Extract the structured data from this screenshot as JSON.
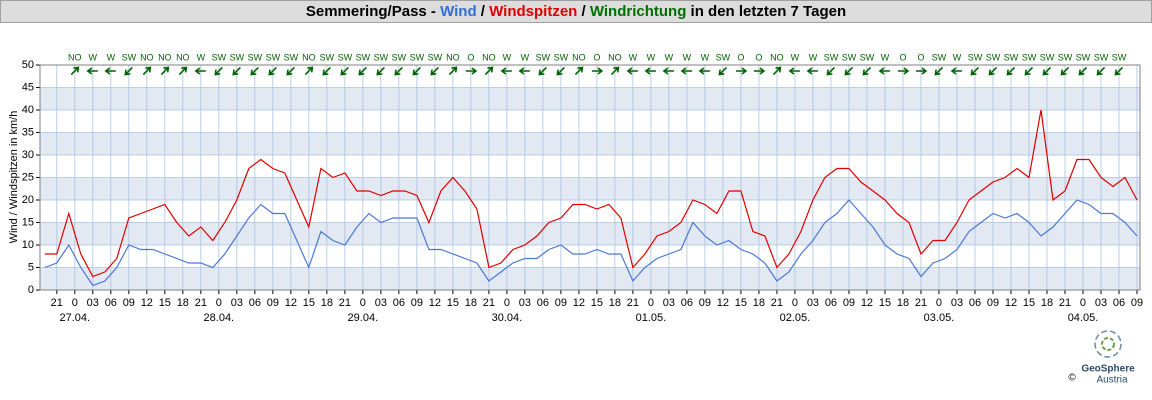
{
  "chart_data": {
    "type": "line",
    "title_parts": [
      {
        "text": "Semmering/Pass - ",
        "color": "#000000"
      },
      {
        "text": "Wind",
        "color": "#2f6fd6"
      },
      {
        "text": " / ",
        "color": "#000000"
      },
      {
        "text": "Windspitzen",
        "color": "#e00000"
      },
      {
        "text": " / ",
        "color": "#000000"
      },
      {
        "text": "Windrichtung",
        "color": "#007000"
      },
      {
        "text": " in den letzten 7 Tagen",
        "color": "#000000"
      }
    ],
    "y_label": "Wind / Windspitzen in km/h",
    "x": [
      -5,
      -3,
      -1,
      1,
      3,
      5,
      7,
      9,
      11,
      13,
      15,
      17,
      19,
      21,
      23,
      25,
      27,
      29,
      31,
      33,
      35,
      37,
      39,
      41,
      43,
      45,
      47,
      49,
      51,
      53,
      55,
      57,
      59,
      61,
      63,
      65,
      67,
      69,
      71,
      73,
      75,
      77,
      79,
      81,
      83,
      85,
      87,
      89,
      91,
      93,
      95,
      97,
      99,
      101,
      103,
      105,
      107,
      109,
      111,
      113,
      115,
      117,
      119,
      121,
      123,
      125,
      127,
      129,
      131,
      133,
      135,
      137,
      139,
      141,
      143,
      145,
      147,
      149,
      151,
      153,
      155,
      157,
      159,
      161,
      163,
      165,
      167,
      169,
      171,
      173,
      175,
      177
    ],
    "series": [
      {
        "name": "Windspitzen",
        "color": "#e00000",
        "values": [
          8,
          8,
          17,
          8,
          3,
          4,
          7,
          16,
          17,
          18,
          19,
          15,
          12,
          14,
          11,
          15,
          20,
          27,
          29,
          27,
          26,
          20,
          14,
          27,
          25,
          26,
          22,
          22,
          21,
          22,
          22,
          21,
          15,
          22,
          25,
          22,
          18,
          5,
          6,
          9,
          10,
          12,
          15,
          16,
          19,
          19,
          18,
          19,
          16,
          5,
          8,
          12,
          13,
          15,
          20,
          19,
          17,
          22,
          22,
          13,
          12,
          5,
          8,
          13,
          20,
          25,
          27,
          27,
          24,
          22,
          20,
          17,
          15,
          8,
          11,
          11,
          15,
          20,
          22,
          24,
          25,
          27,
          25,
          40,
          20,
          22,
          29,
          29,
          25,
          23,
          25,
          20
        ]
      },
      {
        "name": "Wind",
        "color": "#4a78d8",
        "values": [
          5,
          6,
          10,
          5,
          1,
          2,
          5,
          10,
          9,
          9,
          8,
          7,
          6,
          6,
          5,
          8,
          12,
          16,
          19,
          17,
          17,
          11,
          5,
          13,
          11,
          10,
          14,
          17,
          15,
          16,
          16,
          16,
          9,
          9,
          8,
          7,
          6,
          2,
          4,
          6,
          7,
          7,
          9,
          10,
          8,
          8,
          9,
          8,
          8,
          2,
          5,
          7,
          8,
          9,
          15,
          12,
          10,
          11,
          9,
          8,
          6,
          2,
          4,
          8,
          11,
          15,
          17,
          20,
          17,
          14,
          10,
          8,
          7,
          3,
          6,
          7,
          9,
          13,
          15,
          17,
          16,
          17,
          15,
          12,
          14,
          17,
          20,
          19,
          17,
          17,
          15,
          12
        ]
      }
    ],
    "xlim": [
      -5.8,
      177.5
    ],
    "ylim": [
      0,
      50
    ],
    "yticks": [
      0,
      5,
      10,
      15,
      20,
      25,
      30,
      35,
      40,
      45,
      50
    ],
    "xticks": [
      {
        "value": -3,
        "label": "21"
      },
      {
        "value": 0,
        "label": "0"
      },
      {
        "value": 3,
        "label": "03"
      },
      {
        "value": 6,
        "label": "06"
      },
      {
        "value": 9,
        "label": "09"
      },
      {
        "value": 12,
        "label": "12"
      },
      {
        "value": 15,
        "label": "15"
      },
      {
        "value": 18,
        "label": "18"
      },
      {
        "value": 21,
        "label": "21"
      },
      {
        "value": 24,
        "label": "0"
      },
      {
        "value": 27,
        "label": "03"
      },
      {
        "value": 30,
        "label": "06"
      },
      {
        "value": 33,
        "label": "09"
      },
      {
        "value": 36,
        "label": "12"
      },
      {
        "value": 39,
        "label": "15"
      },
      {
        "value": 42,
        "label": "18"
      },
      {
        "value": 45,
        "label": "21"
      },
      {
        "value": 48,
        "label": "0"
      },
      {
        "value": 51,
        "label": "03"
      },
      {
        "value": 54,
        "label": "06"
      },
      {
        "value": 57,
        "label": "09"
      },
      {
        "value": 60,
        "label": "12"
      },
      {
        "value": 63,
        "label": "15"
      },
      {
        "value": 66,
        "label": "18"
      },
      {
        "value": 69,
        "label": "21"
      },
      {
        "value": 72,
        "label": "0"
      },
      {
        "value": 75,
        "label": "03"
      },
      {
        "value": 78,
        "label": "06"
      },
      {
        "value": 81,
        "label": "09"
      },
      {
        "value": 84,
        "label": "12"
      },
      {
        "value": 87,
        "label": "15"
      },
      {
        "value": 90,
        "label": "18"
      },
      {
        "value": 93,
        "label": "21"
      },
      {
        "value": 96,
        "label": "0"
      },
      {
        "value": 99,
        "label": "03"
      },
      {
        "value": 102,
        "label": "06"
      },
      {
        "value": 105,
        "label": "09"
      },
      {
        "value": 108,
        "label": "12"
      },
      {
        "value": 111,
        "label": "15"
      },
      {
        "value": 114,
        "label": "18"
      },
      {
        "value": 117,
        "label": "21"
      },
      {
        "value": 120,
        "label": "0"
      },
      {
        "value": 123,
        "label": "03"
      },
      {
        "value": 126,
        "label": "06"
      },
      {
        "value": 129,
        "label": "09"
      },
      {
        "value": 132,
        "label": "12"
      },
      {
        "value": 135,
        "label": "15"
      },
      {
        "value": 138,
        "label": "18"
      },
      {
        "value": 141,
        "label": "21"
      },
      {
        "value": 144,
        "label": "0"
      },
      {
        "value": 147,
        "label": "03"
      },
      {
        "value": 150,
        "label": "06"
      },
      {
        "value": 153,
        "label": "09"
      },
      {
        "value": 156,
        "label": "12"
      },
      {
        "value": 159,
        "label": "15"
      },
      {
        "value": 162,
        "label": "18"
      },
      {
        "value": 165,
        "label": "21"
      },
      {
        "value": 168,
        "label": "0"
      },
      {
        "value": 171,
        "label": "03"
      },
      {
        "value": 174,
        "label": "06"
      },
      {
        "value": 177,
        "label": "09"
      }
    ],
    "date_ticks": [
      {
        "value": 0,
        "label": "27.04."
      },
      {
        "value": 24,
        "label": "28.04."
      },
      {
        "value": 48,
        "label": "29.04."
      },
      {
        "value": 72,
        "label": "30.04."
      },
      {
        "value": 96,
        "label": "01.05."
      },
      {
        "value": 120,
        "label": "02.05."
      },
      {
        "value": 144,
        "label": "03.05."
      },
      {
        "value": 168,
        "label": "04.05."
      }
    ],
    "grid": true,
    "bands_color": "#e3e9f2",
    "grid_color": "#a9c2e2",
    "wind_direction": {
      "color": "#006400",
      "x": [
        0,
        3,
        6,
        9,
        12,
        15,
        18,
        21,
        24,
        27,
        30,
        33,
        36,
        39,
        42,
        45,
        48,
        51,
        54,
        57,
        60,
        63,
        66,
        69,
        72,
        75,
        78,
        81,
        84,
        87,
        90,
        93,
        96,
        99,
        102,
        105,
        108,
        111,
        114,
        117,
        120,
        123,
        126,
        129,
        132,
        135,
        138,
        141,
        144,
        147,
        150,
        153,
        156,
        159,
        162,
        165,
        168,
        171,
        174
      ],
      "labels": [
        "NO",
        "W",
        "W",
        "SW",
        "NO",
        "NO",
        "NO",
        "W",
        "SW",
        "SW",
        "SW",
        "SW",
        "SW",
        "NO",
        "SW",
        "SW",
        "SW",
        "SW",
        "SW",
        "SW",
        "SW",
        "NO",
        "O",
        "NO",
        "W",
        "W",
        "SW",
        "SW",
        "NO",
        "O",
        "NO",
        "W",
        "W",
        "W",
        "W",
        "W",
        "SW",
        "O",
        "O",
        "NO",
        "W",
        "W",
        "SW",
        "SW",
        "SW",
        "W",
        "O",
        "O",
        "SW",
        "W",
        "SW",
        "SW",
        "SW",
        "SW",
        "SW",
        "SW",
        "SW",
        "SW",
        "SW"
      ],
      "degrees": [
        45,
        270,
        270,
        225,
        45,
        45,
        45,
        270,
        225,
        225,
        225,
        225,
        225,
        45,
        225,
        225,
        225,
        225,
        225,
        225,
        225,
        45,
        90,
        45,
        270,
        270,
        225,
        225,
        45,
        90,
        45,
        270,
        270,
        270,
        270,
        270,
        225,
        90,
        90,
        45,
        270,
        270,
        225,
        225,
        225,
        270,
        90,
        90,
        225,
        270,
        225,
        225,
        225,
        225,
        225,
        225,
        225,
        225,
        225
      ]
    },
    "logo": {
      "name": "GeoSphere",
      "sub": "Austria",
      "copyright": "©"
    }
  }
}
